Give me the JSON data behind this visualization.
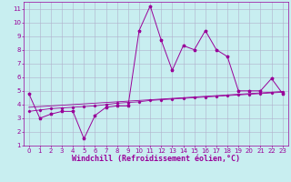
{
  "xlabel": "Windchill (Refroidissement éolien,°C)",
  "background_color": "#c8eef0",
  "grid_color": "#b0b0cc",
  "line_color": "#990099",
  "xlim": [
    -0.5,
    23.5
  ],
  "ylim": [
    1,
    11.5
  ],
  "xticks": [
    0,
    1,
    2,
    3,
    4,
    5,
    6,
    7,
    8,
    9,
    10,
    11,
    12,
    13,
    14,
    15,
    16,
    17,
    18,
    19,
    20,
    21,
    22,
    23
  ],
  "yticks": [
    1,
    2,
    3,
    4,
    5,
    6,
    7,
    8,
    9,
    10,
    11
  ],
  "series1_x": [
    0,
    1,
    2,
    3,
    4,
    5,
    6,
    7,
    8,
    9,
    10,
    11,
    12,
    13,
    14,
    15,
    16,
    17,
    18,
    19,
    20,
    21,
    22,
    23
  ],
  "series1_y": [
    4.8,
    3.0,
    3.3,
    3.5,
    3.5,
    1.5,
    3.2,
    3.8,
    3.9,
    3.9,
    9.4,
    11.2,
    8.7,
    6.5,
    8.3,
    8.0,
    9.4,
    8.0,
    7.5,
    5.0,
    5.0,
    5.0,
    5.9,
    4.8
  ],
  "series2_x": [
    0,
    1,
    2,
    3,
    4,
    5,
    6,
    7,
    8,
    9,
    10,
    11,
    12,
    13,
    14,
    15,
    16,
    17,
    18,
    19,
    20,
    21,
    22,
    23
  ],
  "series2_y": [
    3.5,
    3.6,
    3.7,
    3.75,
    3.8,
    3.85,
    3.9,
    4.0,
    4.1,
    4.15,
    4.2,
    4.3,
    4.35,
    4.4,
    4.45,
    4.5,
    4.55,
    4.6,
    4.65,
    4.7,
    4.75,
    4.8,
    4.85,
    4.9
  ],
  "series3_x": [
    0,
    1,
    2,
    3,
    4,
    5,
    6,
    7,
    8,
    9,
    10,
    11,
    12,
    13,
    14,
    15,
    16,
    17,
    18,
    19,
    20,
    21,
    22,
    23
  ],
  "series3_y": [
    3.8,
    3.85,
    3.9,
    3.95,
    4.0,
    4.05,
    4.1,
    4.15,
    4.2,
    4.25,
    4.3,
    4.35,
    4.4,
    4.45,
    4.5,
    4.55,
    4.6,
    4.65,
    4.7,
    4.75,
    4.8,
    4.85,
    4.9,
    4.95
  ],
  "tick_fontsize": 5.0,
  "xlabel_fontsize": 6.0
}
